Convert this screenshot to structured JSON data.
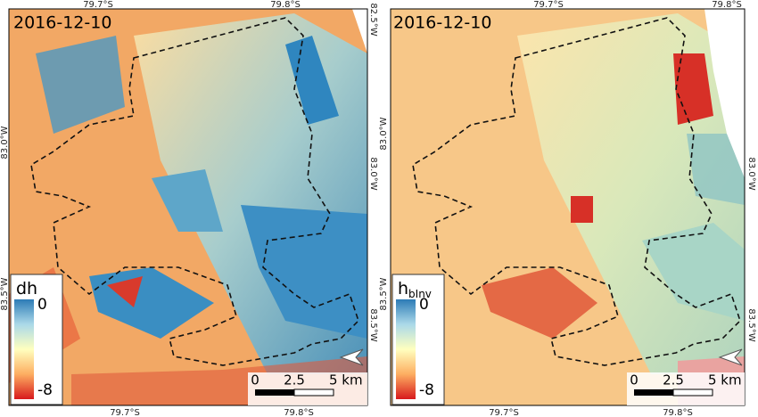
{
  "panels": [
    {
      "date": "2016-12-10",
      "top_ticks": [
        "79.7°S",
        "79.8°S"
      ],
      "bottom_ticks": [
        "79.7°S",
        "79.8°S"
      ],
      "left_ticks": [
        "83.0°W",
        "83.5°W"
      ],
      "right_ticks": [
        "82.5°W",
        "83.0°W",
        "83.5°W"
      ],
      "colorbar": {
        "title": "dh",
        "max": 0,
        "min": -8
      },
      "scale": [
        0,
        2.5,
        "5 km"
      ]
    },
    {
      "date": "2016-12-10",
      "top_ticks": [
        "79.7°S",
        "79.8°S"
      ],
      "bottom_ticks": [
        "79.7°S",
        "79.8°S"
      ],
      "left_ticks": [
        "83.0°W",
        "83.5°W"
      ],
      "right_ticks": [
        "83.0°W",
        "83.5°W"
      ],
      "colorbar": {
        "title": "h",
        "title_subscript": "bInv",
        "max": 0,
        "min": -8
      },
      "scale": [
        0,
        2.5,
        "5 km"
      ]
    }
  ]
}
